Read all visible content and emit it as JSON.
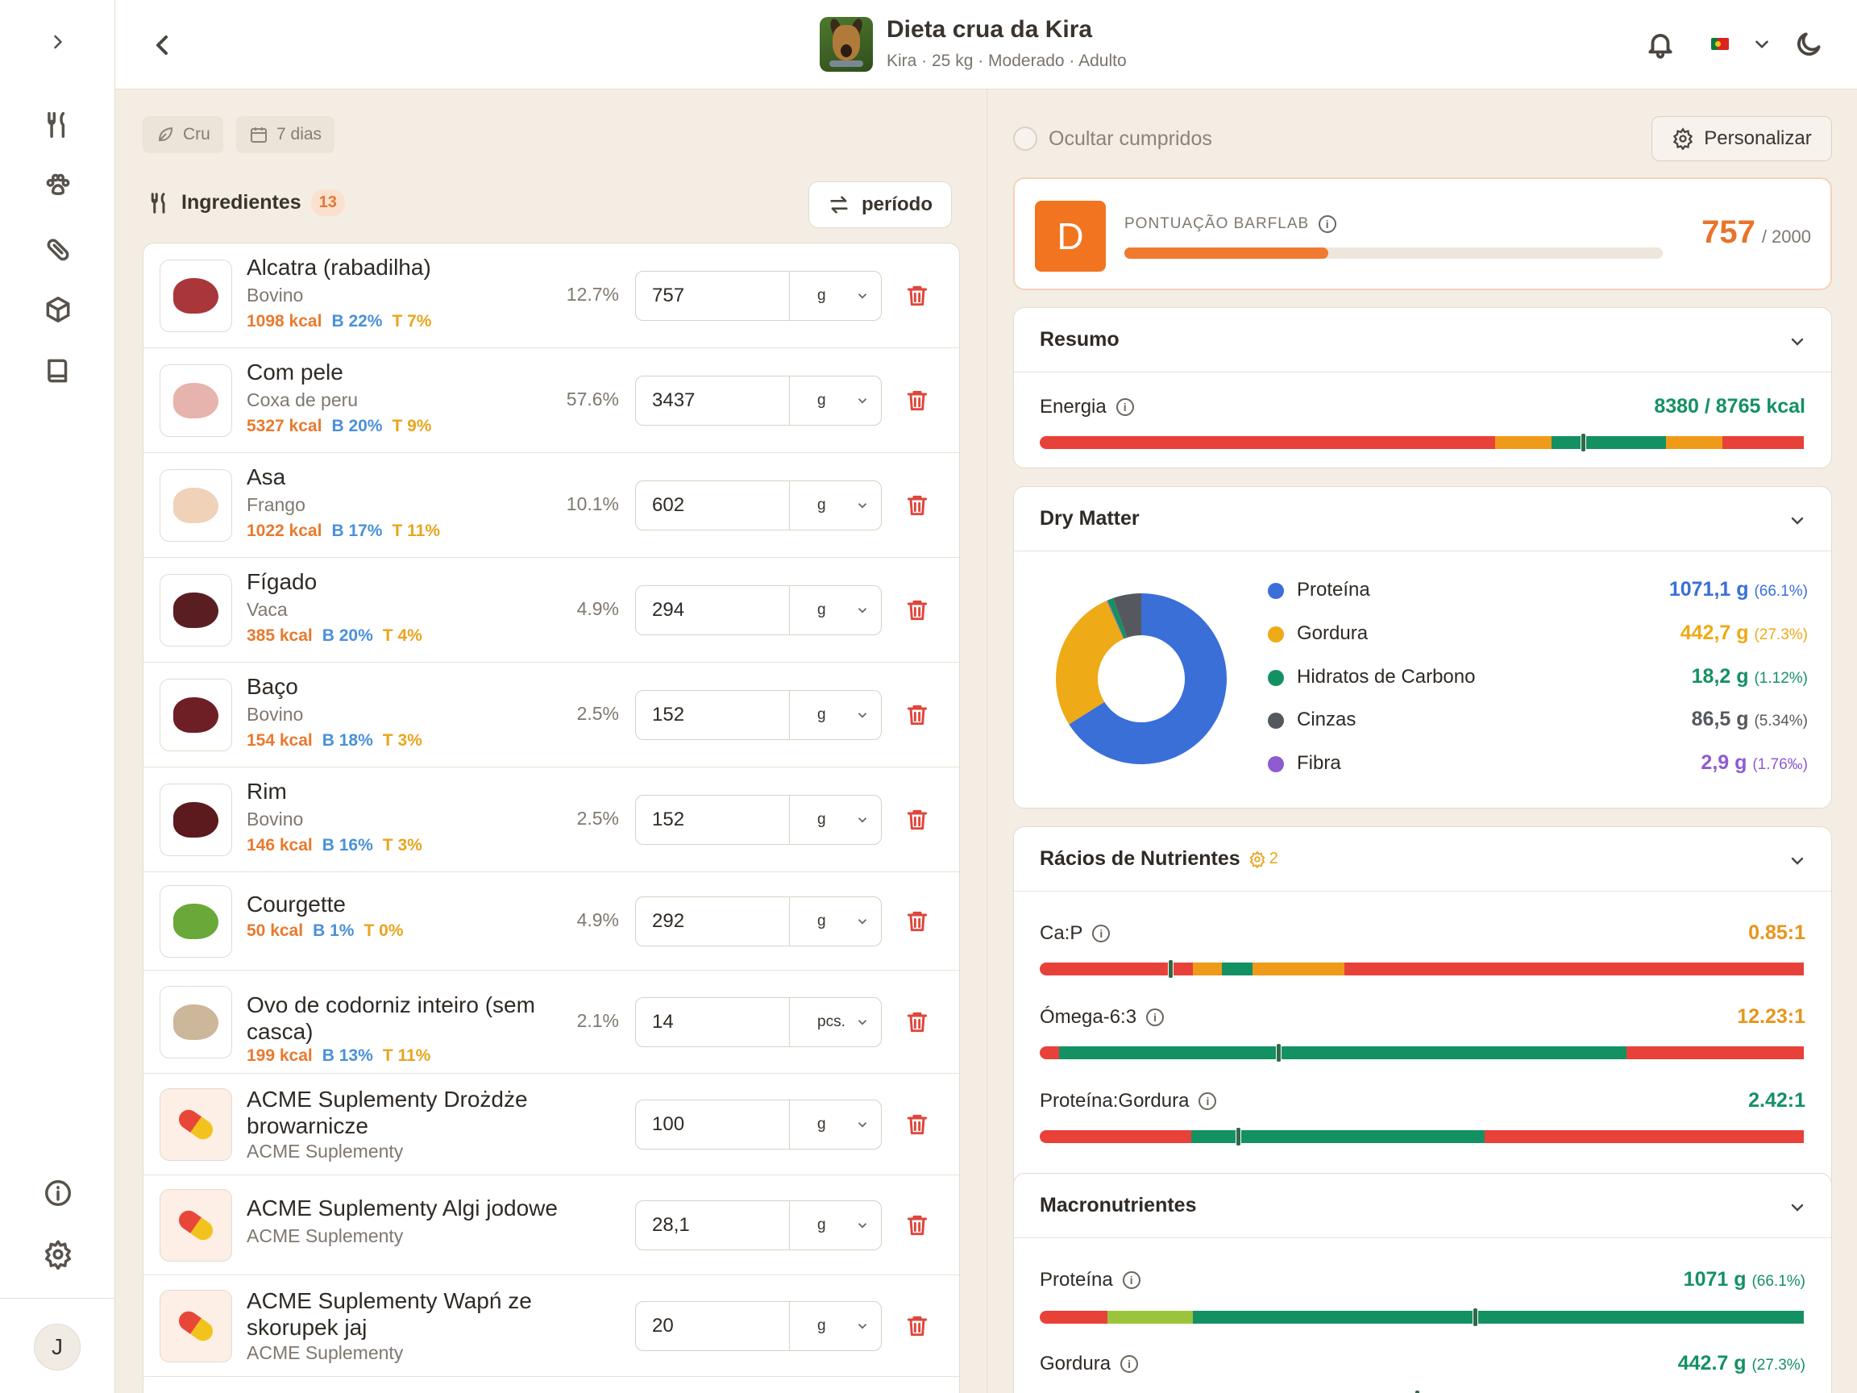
{
  "header": {
    "title": "Dieta crua da Kira",
    "subtitle": "Kira · 25 kg · Moderado · Adulto"
  },
  "sidebar": {
    "icons": [
      "chevron-right-icon",
      "utensils-icon",
      "paw-icon",
      "pill-icon",
      "box-icon",
      "book-icon",
      "info-icon",
      "gear-icon"
    ],
    "avatar": "J"
  },
  "chips": {
    "cru": "Cru",
    "dias": "7 dias"
  },
  "ingredients": {
    "title": "Ingredientes",
    "count": "13",
    "period_button": "período",
    "items": [
      {
        "name": "Alcatra (rabadilha)",
        "sub": "Bovino",
        "kcal": "1098 kcal",
        "b": "B 22%",
        "t": "T 7%",
        "pct": "12.7%",
        "qty": "757",
        "unit": "g",
        "color": "#a8363a"
      },
      {
        "name": "Com pele",
        "sub": "Coxa de peru",
        "kcal": "5327 kcal",
        "b": "B 20%",
        "t": "T 9%",
        "pct": "57.6%",
        "qty": "3437",
        "unit": "g",
        "color": "#e7b3ad"
      },
      {
        "name": "Asa",
        "sub": "Frango",
        "kcal": "1022 kcal",
        "b": "B 17%",
        "t": "T 11%",
        "pct": "10.1%",
        "qty": "602",
        "unit": "g",
        "color": "#efd2b8"
      },
      {
        "name": "Fígado",
        "sub": "Vaca",
        "kcal": "385 kcal",
        "b": "B 20%",
        "t": "T 4%",
        "pct": "4.9%",
        "qty": "294",
        "unit": "g",
        "color": "#5a1e22"
      },
      {
        "name": "Baço",
        "sub": "Bovino",
        "kcal": "154 kcal",
        "b": "B 18%",
        "t": "T 3%",
        "pct": "2.5%",
        "qty": "152",
        "unit": "g",
        "color": "#6e1f26"
      },
      {
        "name": "Rim",
        "sub": "Bovino",
        "kcal": "146 kcal",
        "b": "B 16%",
        "t": "T 3%",
        "pct": "2.5%",
        "qty": "152",
        "unit": "g",
        "color": "#5c1a1e"
      },
      {
        "name": "Courgette",
        "sub": "",
        "kcal": "50 kcal",
        "b": "B 1%",
        "t": "T 0%",
        "pct": "4.9%",
        "qty": "292",
        "unit": "g",
        "color": "#6aa83a"
      },
      {
        "name": "Ovo de codorniz inteiro (sem casca)",
        "sub": "",
        "kcal": "199 kcal",
        "b": "B 13%",
        "t": "T 11%",
        "pct": "2.1%",
        "qty": "14",
        "unit": "pcs.",
        "color": "#cdb79a"
      },
      {
        "name": "ACME Suplementy Drożdże browarnicze",
        "sub": "ACME Suplementy",
        "kcal": "",
        "b": "",
        "t": "",
        "pct": "",
        "qty": "100",
        "unit": "g",
        "color": "supp"
      },
      {
        "name": "ACME Suplementy Algi jodowe",
        "sub": "ACME Suplementy",
        "kcal": "",
        "b": "",
        "t": "",
        "pct": "",
        "qty": "28,1",
        "unit": "g",
        "color": "supp"
      },
      {
        "name": "ACME Suplementy Wapń ze skorupek jaj",
        "sub": "ACME Suplementy",
        "kcal": "",
        "b": "",
        "t": "",
        "pct": "",
        "qty": "20",
        "unit": "g",
        "color": "supp"
      }
    ]
  },
  "right": {
    "hide_label": "Ocultar cumpridos",
    "customize": "Personalizar",
    "score": {
      "grade": "D",
      "label": "PONTUAÇÃO BARFLAB",
      "value": "757",
      "max": "/ 2000",
      "fraction": 0.3785
    },
    "resumo": {
      "title": "Resumo",
      "energy_label": "Energia",
      "energy_value": "8380 / 8765 kcal"
    },
    "dry": {
      "title": "Dry Matter",
      "items": [
        {
          "name": "Proteína",
          "value": "1071,1 g",
          "pct": "(66.1%)",
          "color": "#3a6fd8"
        },
        {
          "name": "Gordura",
          "value": "442,7 g",
          "pct": "(27.3%)",
          "color": "#eeaa17"
        },
        {
          "name": "Hidratos de Carbono",
          "value": "18,2 g",
          "pct": "(1.12%)",
          "color": "#149163"
        },
        {
          "name": "Cinzas",
          "value": "86,5 g",
          "pct": "(5.34%)",
          "color": "#55595f"
        },
        {
          "name": "Fibra",
          "value": "2,9 g",
          "pct": "(1.76‰)",
          "color": "#8e5bd0"
        }
      ]
    },
    "ratios": {
      "title": "Rácios de Nutrientes",
      "badge": "2",
      "items": [
        {
          "label": "Ca:P",
          "value": "0.85:1",
          "color": "#e8951a"
        },
        {
          "label": "Ómega-6:3",
          "value": "12.23:1",
          "color": "#e8951a"
        },
        {
          "label": "Proteína:Gordura",
          "value": "2.42:1",
          "color": "#149163"
        }
      ]
    },
    "macro": {
      "title": "Macronutrientes",
      "items": [
        {
          "label": "Proteína",
          "value": "1071 g",
          "pct": "(66.1%)"
        },
        {
          "label": "Gordura",
          "value": "442.7 g",
          "pct": "(27.3%)"
        }
      ]
    }
  }
}
